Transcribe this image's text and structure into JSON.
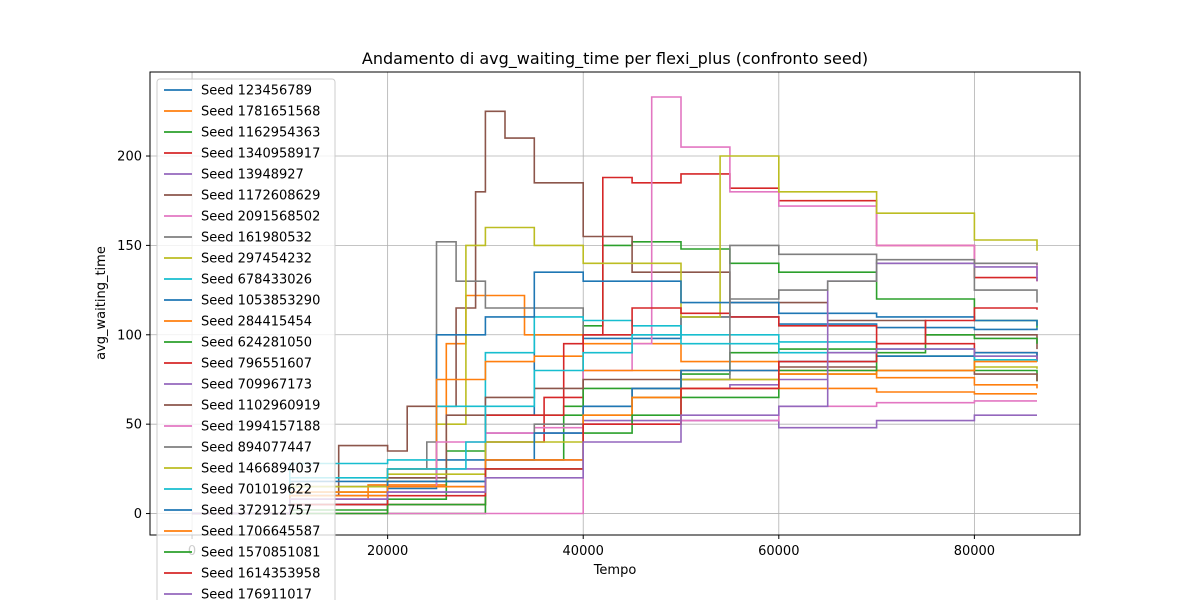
{
  "chart_data": {
    "type": "line",
    "title": "Andamento di avg_waiting_time per flexi_plus (confronto seed)",
    "xlabel": "Tempo",
    "ylabel": "avg_waiting_time",
    "xlim": [
      -4300,
      90800
    ],
    "ylim": [
      -12,
      247
    ],
    "xticks": [
      0,
      20000,
      40000,
      60000,
      80000
    ],
    "xtick_labels": [
      "0",
      "20000",
      "40000",
      "60000",
      "80000"
    ],
    "yticks": [
      0,
      50,
      100,
      150,
      200
    ],
    "ytick_labels": [
      "0",
      "50",
      "100",
      "150",
      "200"
    ],
    "grid": true,
    "legend_position": "upper-left",
    "colors": [
      "#1f77b4",
      "#ff7f0e",
      "#2ca02c",
      "#d62728",
      "#9467bd",
      "#8c564b",
      "#e377c2",
      "#7f7f7f",
      "#bcbd22",
      "#17becf"
    ],
    "series": [
      {
        "name": "Seed 123456789",
        "color": "#1f77b4",
        "x": [
          0,
          10000,
          20000,
          25000,
          30000,
          35000,
          40000,
          50000,
          60000,
          70000,
          80000,
          86400
        ],
        "y": [
          0,
          5,
          14,
          30,
          55,
          100,
          98,
          110,
          106,
          104,
          103,
          104
        ]
      },
      {
        "name": "Seed 1781651568",
        "color": "#ff7f0e",
        "x": [
          0,
          10000,
          18000,
          26000,
          28000,
          30000,
          34000,
          40000,
          50000,
          60000,
          70000,
          80000,
          86400
        ],
        "y": [
          0,
          8,
          16,
          95,
          122,
          122,
          100,
          95,
          85,
          80,
          76,
          72,
          70
        ]
      },
      {
        "name": "Seed 1162954363",
        "color": "#2ca02c",
        "x": [
          0,
          20000,
          30000,
          38000,
          40000,
          42000,
          45000,
          50000,
          55000,
          60000,
          70000,
          80000,
          86400
        ],
        "y": [
          0,
          0,
          30,
          60,
          105,
          150,
          152,
          148,
          140,
          135,
          120,
          108,
          104
        ]
      },
      {
        "name": "Seed 1340958917",
        "color": "#d62728",
        "x": [
          0,
          20000,
          30000,
          36000,
          40000,
          42000,
          45000,
          50000,
          55000,
          60000,
          70000,
          80000,
          86400
        ],
        "y": [
          0,
          5,
          40,
          65,
          100,
          188,
          185,
          190,
          182,
          175,
          150,
          132,
          130
        ]
      },
      {
        "name": "Seed 13948927",
        "color": "#9467bd",
        "x": [
          0,
          10000,
          20000,
          30000,
          40000,
          50000,
          60000,
          70000,
          80000,
          86400
        ],
        "y": [
          0,
          10,
          25,
          45,
          52,
          52,
          48,
          52,
          55,
          55
        ]
      },
      {
        "name": "Seed 1172608629",
        "color": "#8c564b",
        "x": [
          0,
          10000,
          15000,
          20000,
          22000,
          27000,
          29000,
          30000,
          32000,
          35000,
          40000,
          45000,
          55000,
          65000,
          75000,
          86400
        ],
        "y": [
          0,
          10,
          38,
          35,
          60,
          115,
          180,
          225,
          210,
          185,
          155,
          135,
          118,
          108,
          100,
          92
        ]
      },
      {
        "name": "Seed 2091568502",
        "color": "#e377c2",
        "x": [
          0,
          10000,
          20000,
          30000,
          40000,
          45000,
          47000,
          50000,
          55000,
          60000,
          70000,
          80000,
          86400
        ],
        "y": [
          0,
          0,
          0,
          0,
          80,
          95,
          233,
          205,
          180,
          172,
          150,
          140,
          133
        ]
      },
      {
        "name": "Seed 161980532",
        "color": "#7f7f7f",
        "x": [
          0,
          10000,
          20000,
          24000,
          25000,
          27000,
          30000,
          40000,
          50000,
          55000,
          60000,
          70000,
          80000,
          86400
        ],
        "y": [
          0,
          15,
          25,
          40,
          152,
          130,
          115,
          100,
          110,
          150,
          145,
          140,
          125,
          118
        ]
      },
      {
        "name": "Seed 297454232",
        "color": "#bcbd22",
        "x": [
          0,
          10000,
          20000,
          25000,
          28000,
          30000,
          35000,
          40000,
          50000,
          54000,
          60000,
          70000,
          80000,
          86400
        ],
        "y": [
          0,
          12,
          20,
          50,
          150,
          160,
          150,
          140,
          110,
          200,
          180,
          168,
          153,
          147
        ]
      },
      {
        "name": "Seed 678433026",
        "color": "#17becf",
        "x": [
          0,
          10000,
          20000,
          25000,
          30000,
          35000,
          40000,
          45000,
          50000,
          60000,
          70000,
          80000,
          86400
        ],
        "y": [
          0,
          28,
          30,
          60,
          90,
          110,
          108,
          105,
          100,
          96,
          92,
          88,
          86
        ]
      },
      {
        "name": "Seed 1053853290",
        "color": "#1f77b4",
        "x": [
          0,
          10000,
          20000,
          25000,
          30000,
          35000,
          40000,
          50000,
          60000,
          70000,
          80000,
          86400
        ],
        "y": [
          0,
          18,
          20,
          100,
          110,
          135,
          130,
          118,
          112,
          110,
          108,
          105
        ]
      },
      {
        "name": "Seed 284415454",
        "color": "#ff7f0e",
        "x": [
          0,
          10000,
          20000,
          25000,
          30000,
          35000,
          40000,
          50000,
          60000,
          70000,
          80000,
          86400
        ],
        "y": [
          0,
          12,
          25,
          75,
          85,
          88,
          80,
          75,
          70,
          68,
          67,
          67
        ]
      },
      {
        "name": "Seed 624281050",
        "color": "#2ca02c",
        "x": [
          0,
          10000,
          20000,
          26000,
          30000,
          40000,
          50000,
          55000,
          60000,
          70000,
          80000,
          86400
        ],
        "y": [
          0,
          2,
          8,
          35,
          55,
          70,
          78,
          90,
          92,
          88,
          80,
          74
        ]
      },
      {
        "name": "Seed 796551607",
        "color": "#d62728",
        "x": [
          0,
          10000,
          20000,
          30000,
          38000,
          40000,
          45000,
          50000,
          55000,
          60000,
          70000,
          80000,
          86400
        ],
        "y": [
          0,
          5,
          15,
          55,
          95,
          100,
          115,
          112,
          110,
          105,
          95,
          90,
          85
        ]
      },
      {
        "name": "Seed 709967173",
        "color": "#9467bd",
        "x": [
          0,
          10000,
          20000,
          30000,
          40000,
          45000,
          50000,
          55000,
          60000,
          65000,
          70000,
          80000,
          86400
        ],
        "y": [
          0,
          8,
          12,
          30,
          50,
          65,
          70,
          72,
          75,
          130,
          140,
          138,
          130
        ]
      },
      {
        "name": "Seed 1102960919",
        "color": "#8c564b",
        "x": [
          0,
          10000,
          20000,
          26000,
          30000,
          35000,
          40000,
          50000,
          60000,
          70000,
          80000,
          86400
        ],
        "y": [
          0,
          15,
          20,
          55,
          65,
          70,
          75,
          80,
          82,
          80,
          78,
          74
        ]
      },
      {
        "name": "Seed 1994157188",
        "color": "#e377c2",
        "x": [
          0,
          10000,
          20000,
          25000,
          30000,
          35000,
          40000,
          50000,
          60000,
          70000,
          80000,
          86400
        ],
        "y": [
          0,
          8,
          15,
          40,
          45,
          48,
          50,
          52,
          60,
          62,
          63,
          63
        ]
      },
      {
        "name": "Seed 894077447",
        "color": "#7f7f7f",
        "x": [
          0,
          10000,
          20000,
          30000,
          35000,
          40000,
          45000,
          50000,
          55000,
          60000,
          65000,
          70000,
          80000,
          86400
        ],
        "y": [
          0,
          10,
          18,
          40,
          50,
          60,
          70,
          75,
          120,
          125,
          130,
          142,
          140,
          139
        ]
      },
      {
        "name": "Seed 1466894037",
        "color": "#bcbd22",
        "x": [
          0,
          10000,
          20000,
          30000,
          40000,
          45000,
          50000,
          60000,
          70000,
          80000,
          86400
        ],
        "y": [
          0,
          15,
          22,
          40,
          55,
          65,
          75,
          78,
          80,
          82,
          81
        ]
      },
      {
        "name": "Seed 701019622",
        "color": "#17becf",
        "x": [
          0,
          10000,
          20000,
          28000,
          30000,
          35000,
          40000,
          45000,
          50000,
          60000,
          70000,
          80000,
          86400
        ],
        "y": [
          0,
          20,
          25,
          40,
          60,
          80,
          90,
          100,
          95,
          90,
          88,
          86,
          85
        ]
      },
      {
        "name": "Seed 372912757",
        "color": "#1f77b4",
        "x": [
          0,
          10000,
          20000,
          30000,
          35000,
          40000,
          45000,
          50000,
          60000,
          70000,
          80000,
          86400
        ],
        "y": [
          0,
          5,
          18,
          30,
          45,
          60,
          70,
          80,
          85,
          88,
          90,
          88
        ]
      },
      {
        "name": "Seed 1706645587",
        "color": "#ff7f0e",
        "x": [
          0,
          10000,
          20000,
          30000,
          40000,
          45000,
          50000,
          60000,
          70000,
          80000,
          86400
        ],
        "y": [
          0,
          10,
          15,
          30,
          55,
          65,
          70,
          78,
          80,
          85,
          85
        ]
      },
      {
        "name": "Seed 1570851081",
        "color": "#2ca02c",
        "x": [
          0,
          10000,
          20000,
          30000,
          40000,
          45000,
          50000,
          60000,
          70000,
          75000,
          80000,
          86400
        ],
        "y": [
          0,
          0,
          5,
          25,
          45,
          55,
          65,
          80,
          90,
          100,
          98,
          95
        ]
      },
      {
        "name": "Seed 1614353958",
        "color": "#d62728",
        "x": [
          0,
          10000,
          20000,
          30000,
          40000,
          50000,
          60000,
          70000,
          75000,
          80000,
          86400
        ],
        "y": [
          0,
          5,
          10,
          25,
          50,
          70,
          85,
          95,
          108,
          115,
          114
        ]
      },
      {
        "name": "Seed 176911017",
        "color": "#9467bd",
        "x": [
          0,
          10000,
          20000,
          30000,
          40000,
          50000,
          60000,
          65000,
          70000,
          80000,
          86400
        ],
        "y": [
          0,
          8,
          12,
          20,
          40,
          55,
          60,
          90,
          92,
          88,
          86
        ]
      }
    ]
  }
}
